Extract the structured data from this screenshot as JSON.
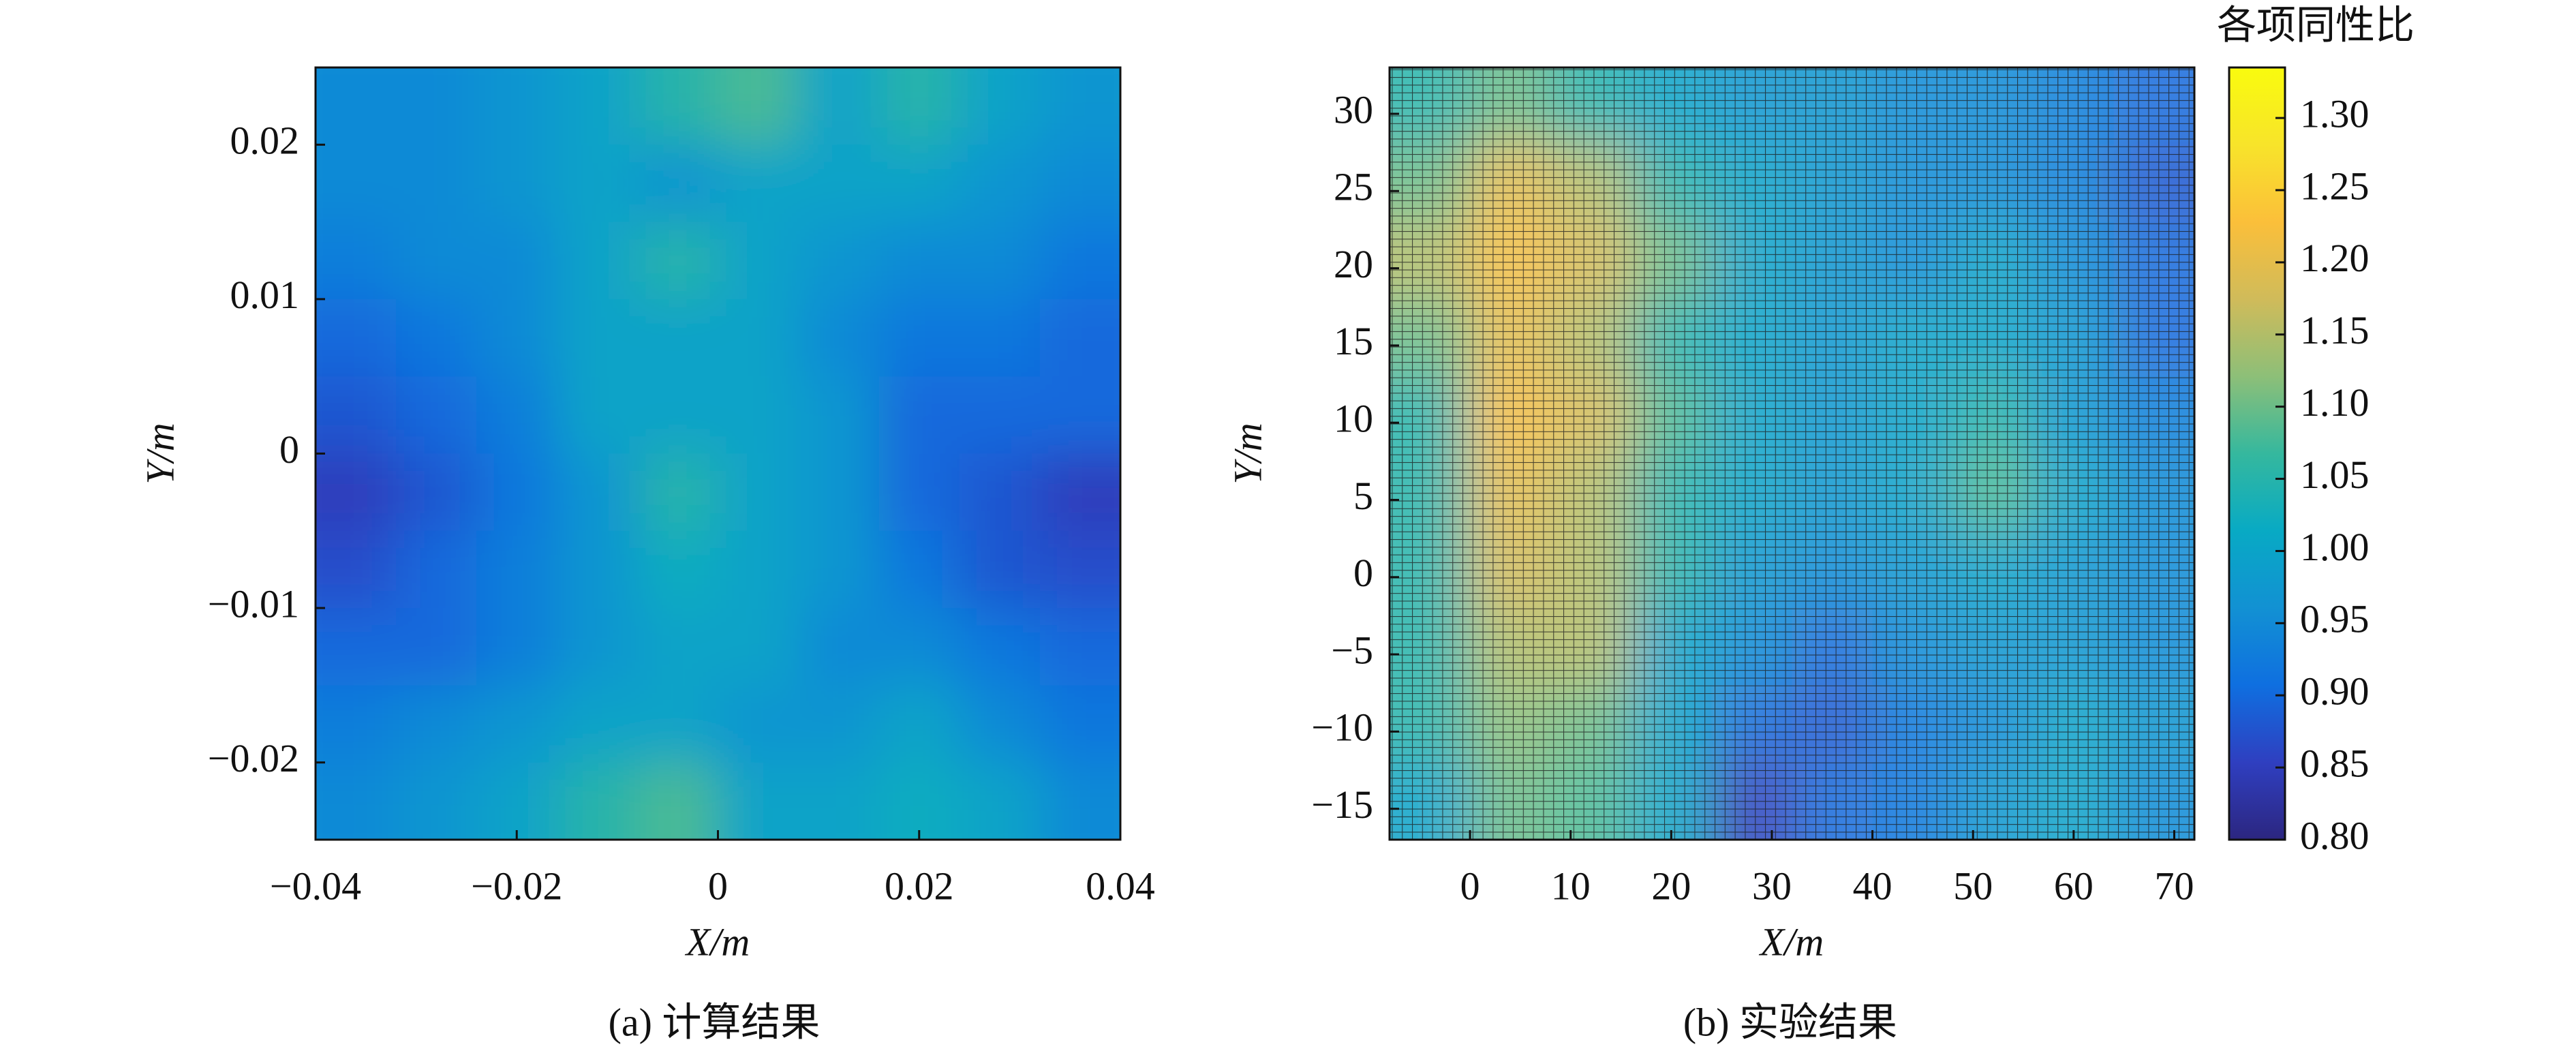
{
  "chart_data": [
    {
      "type": "heatmap",
      "caption": "(a) 计算结果",
      "xlabel": "X/m",
      "ylabel": "Y/m",
      "x": [
        -0.036,
        -0.028,
        -0.02,
        -0.012,
        -0.004,
        0.004,
        0.012,
        0.02,
        0.028,
        0.036
      ],
      "y": [
        0.0225,
        0.0175,
        0.0125,
        0.0075,
        0.0025,
        -0.0025,
        -0.0075,
        -0.0125,
        -0.0175,
        -0.0225
      ],
      "z": [
        [
          0.95,
          0.95,
          0.97,
          1.0,
          1.05,
          1.08,
          1.0,
          1.05,
          1.0,
          0.97
        ],
        [
          0.95,
          0.95,
          0.97,
          1.0,
          0.97,
          1.0,
          1.0,
          1.0,
          0.97,
          0.95
        ],
        [
          0.93,
          0.95,
          0.95,
          1.0,
          1.05,
          1.0,
          0.97,
          0.95,
          0.95,
          0.92
        ],
        [
          0.9,
          0.92,
          0.95,
          1.0,
          1.0,
          1.0,
          0.95,
          0.92,
          0.92,
          0.9
        ],
        [
          0.88,
          0.9,
          0.93,
          1.0,
          1.0,
          1.0,
          0.97,
          0.9,
          0.9,
          0.9
        ],
        [
          0.85,
          0.88,
          0.92,
          0.97,
          1.05,
          1.0,
          0.97,
          0.9,
          0.88,
          0.85
        ],
        [
          0.87,
          0.9,
          0.93,
          0.97,
          1.02,
          1.0,
          0.97,
          0.92,
          0.88,
          0.87
        ],
        [
          0.9,
          0.9,
          0.93,
          0.97,
          1.0,
          1.0,
          0.95,
          0.95,
          0.92,
          0.9
        ],
        [
          0.93,
          0.95,
          0.97,
          1.0,
          1.0,
          0.97,
          0.97,
          1.0,
          0.95,
          0.92
        ],
        [
          0.95,
          0.97,
          1.0,
          1.05,
          1.08,
          1.0,
          1.0,
          1.02,
          1.0,
          0.95
        ]
      ],
      "xlim": [
        -0.04,
        0.04
      ],
      "ylim": [
        -0.025,
        0.025
      ],
      "xticks": [
        {
          "value": -0.04,
          "label": "−0.04"
        },
        {
          "value": -0.02,
          "label": "−0.02"
        },
        0,
        0.02,
        0.04
      ],
      "yticks": [
        {
          "value": -0.02,
          "label": "−0.02"
        },
        {
          "value": -0.01,
          "label": "−0.01"
        },
        0,
        0.01,
        0.02
      ]
    },
    {
      "type": "heatmap",
      "caption": "(b) 实验结果",
      "xlabel": "X/m",
      "ylabel": "Y/m",
      "mesh": true,
      "x": [
        -4,
        4,
        12,
        20,
        28,
        36,
        44,
        52,
        60,
        68
      ],
      "y": [
        30.5,
        25.5,
        20.5,
        15.5,
        10.5,
        5.5,
        0.5,
        -4.5,
        -9.5,
        -14.5
      ],
      "z": [
        [
          1.05,
          1.1,
          1.05,
          1.0,
          0.97,
          0.97,
          0.95,
          0.95,
          0.93,
          0.9
        ],
        [
          1.1,
          1.2,
          1.15,
          1.05,
          1.0,
          0.97,
          0.95,
          0.95,
          0.93,
          0.88
        ],
        [
          1.15,
          1.22,
          1.18,
          1.1,
          1.0,
          0.97,
          0.95,
          1.0,
          0.95,
          0.9
        ],
        [
          1.1,
          1.2,
          1.15,
          1.05,
          1.0,
          0.97,
          1.0,
          1.0,
          0.97,
          0.9
        ],
        [
          1.05,
          1.22,
          1.18,
          1.08,
          1.0,
          0.97,
          1.0,
          1.05,
          0.97,
          0.93
        ],
        [
          1.05,
          1.2,
          1.15,
          1.05,
          1.0,
          0.97,
          1.0,
          1.08,
          1.0,
          0.95
        ],
        [
          1.05,
          1.18,
          1.15,
          1.05,
          0.97,
          0.95,
          0.97,
          1.0,
          0.97,
          0.95
        ],
        [
          1.05,
          1.15,
          1.15,
          1.0,
          0.95,
          0.9,
          0.95,
          0.97,
          0.97,
          0.95
        ],
        [
          1.05,
          1.12,
          1.1,
          1.0,
          0.9,
          0.88,
          0.92,
          0.95,
          1.0,
          0.97
        ],
        [
          1.0,
          1.1,
          1.08,
          1.0,
          0.85,
          0.9,
          0.92,
          0.97,
          1.0,
          0.95
        ]
      ],
      "xlim": [
        -8,
        72
      ],
      "ylim": [
        -17,
        33
      ],
      "xticks": [
        0,
        10,
        20,
        30,
        40,
        50,
        60,
        70
      ],
      "yticks": [
        {
          "value": -15,
          "label": "−15"
        },
        {
          "value": -10,
          "label": "−10"
        },
        {
          "value": -5,
          "label": "−5"
        },
        0,
        5,
        10,
        15,
        20,
        25,
        30
      ],
      "colorbar": {
        "title": "各项同性比",
        "lim": [
          0.8,
          1.335
        ],
        "ticks": [
          {
            "value": 0.8,
            "label": "0.80"
          },
          {
            "value": 0.85,
            "label": "0.85"
          },
          {
            "value": 0.9,
            "label": "0.90"
          },
          {
            "value": 0.95,
            "label": "0.95"
          },
          {
            "value": 1.0,
            "label": "1.00"
          },
          {
            "value": 1.05,
            "label": "1.05"
          },
          {
            "value": 1.1,
            "label": "1.10"
          },
          {
            "value": 1.15,
            "label": "1.15"
          },
          {
            "value": 1.2,
            "label": "1.20"
          },
          {
            "value": 1.25,
            "label": "1.25"
          },
          {
            "value": 1.3,
            "label": "1.30"
          }
        ],
        "colormap": [
          "#2c2680",
          "#2f3fc0",
          "#0f6fe0",
          "#1291d3",
          "#08aac4",
          "#35b89e",
          "#8dbf78",
          "#d0bb5a",
          "#fbbf3a",
          "#f8e42a",
          "#f9fb0e"
        ]
      }
    }
  ]
}
